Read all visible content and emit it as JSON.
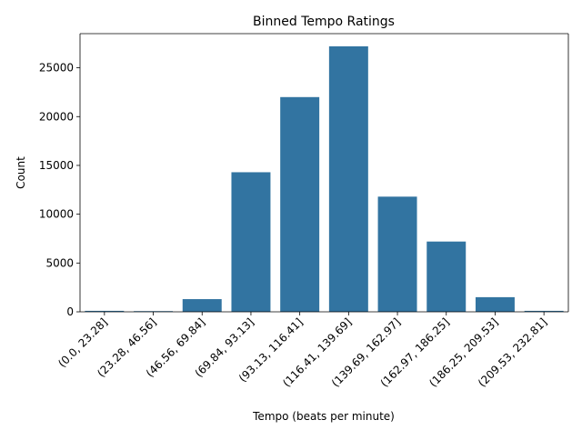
{
  "chart_data": {
    "type": "bar",
    "title": "Binned Tempo Ratings",
    "xlabel": "Tempo (beats per minute)",
    "ylabel": "Count",
    "categories": [
      "(0.0, 23.28]",
      "(23.28, 46.56]",
      "(46.56, 69.84]",
      "(69.84, 93.13]",
      "(93.13, 116.41]",
      "(116.41, 139.69]",
      "(139.69, 162.97]",
      "(162.97, 186.25]",
      "(186.25, 209.53]",
      "(209.53, 232.81]"
    ],
    "values": [
      100,
      70,
      1300,
      14300,
      22000,
      27200,
      11800,
      7200,
      1500,
      100
    ],
    "ylim": [
      0,
      28500
    ],
    "yticks": [
      0,
      5000,
      10000,
      15000,
      20000,
      25000
    ],
    "grid": false,
    "bar_color": "#3274a1"
  }
}
